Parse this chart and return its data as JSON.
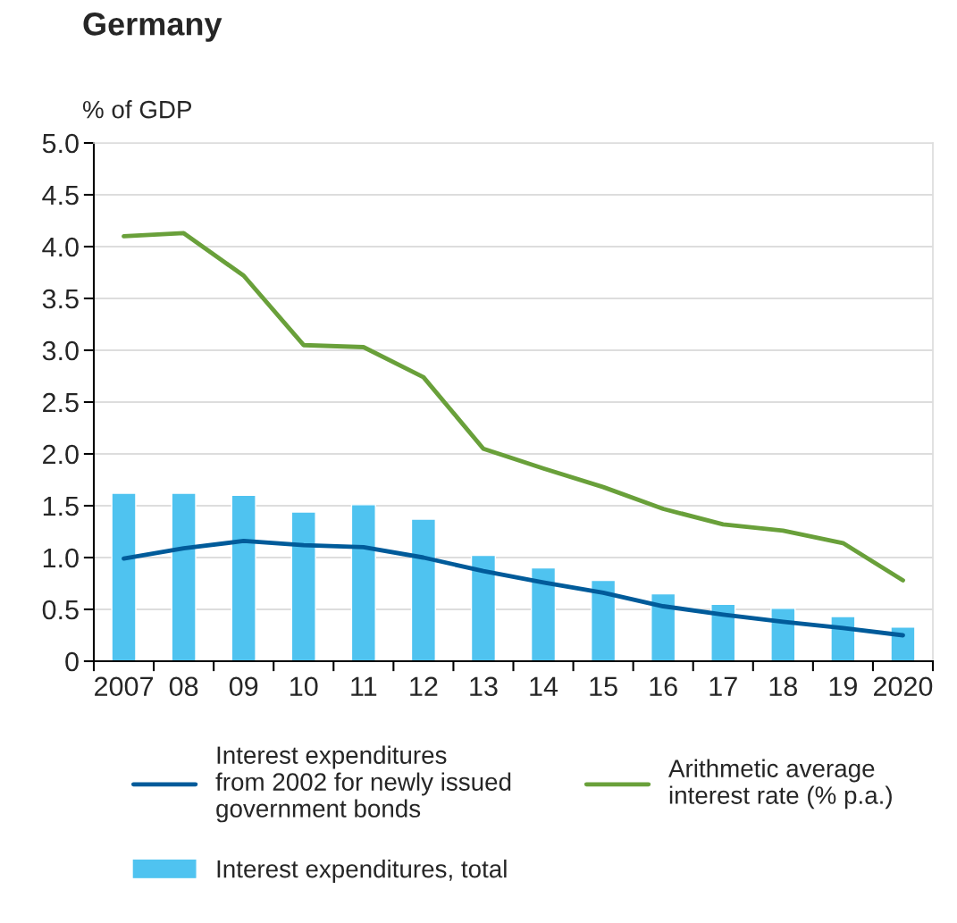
{
  "chart_data": {
    "type": "bar",
    "title": "Germany",
    "ylabel": "% of GDP",
    "categories": [
      "2007",
      "08",
      "09",
      "10",
      "11",
      "12",
      "13",
      "14",
      "15",
      "16",
      "17",
      "18",
      "19",
      "2020"
    ],
    "series": [
      {
        "type": "line",
        "name": "Interest expenditures\nfrom 2002 for newly issued\ngovernment bonds",
        "color": "#005b9a",
        "values": [
          0.99,
          1.09,
          1.16,
          1.12,
          1.1,
          1.0,
          0.87,
          0.76,
          0.66,
          0.53,
          0.45,
          0.38,
          0.32,
          0.25
        ]
      },
      {
        "name": "Interest expenditures, total",
        "color": "#4fc3f0",
        "values": [
          1.62,
          1.62,
          1.6,
          1.44,
          1.51,
          1.37,
          1.02,
          0.9,
          0.78,
          0.65,
          0.55,
          0.51,
          0.43,
          0.33
        ]
      },
      {
        "type": "line",
        "name": "Arithmetic average\ninterest rate (% p.a.)",
        "color": "#69a03a",
        "values": [
          4.1,
          4.13,
          3.72,
          3.05,
          3.03,
          2.74,
          2.05,
          1.86,
          1.68,
          1.47,
          1.32,
          1.26,
          1.14,
          0.78
        ]
      }
    ],
    "ylim": [
      0,
      5
    ],
    "yticks": [
      0,
      {
        "value": 0.5,
        "label": "0.5"
      },
      {
        "value": 1,
        "label": "1.0"
      },
      {
        "value": 1.5,
        "label": "1.5"
      },
      {
        "value": 2,
        "label": "2.0"
      },
      {
        "value": 2.5,
        "label": "2.5"
      },
      {
        "value": 3,
        "label": "3.0"
      },
      {
        "value": 3.5,
        "label": "3.5"
      },
      {
        "value": 4,
        "label": "4.0"
      },
      {
        "value": 4.5,
        "label": "4.5"
      },
      {
        "value": 5,
        "label": "5.0"
      }
    ],
    "grid": "y",
    "legend": "bottom"
  }
}
